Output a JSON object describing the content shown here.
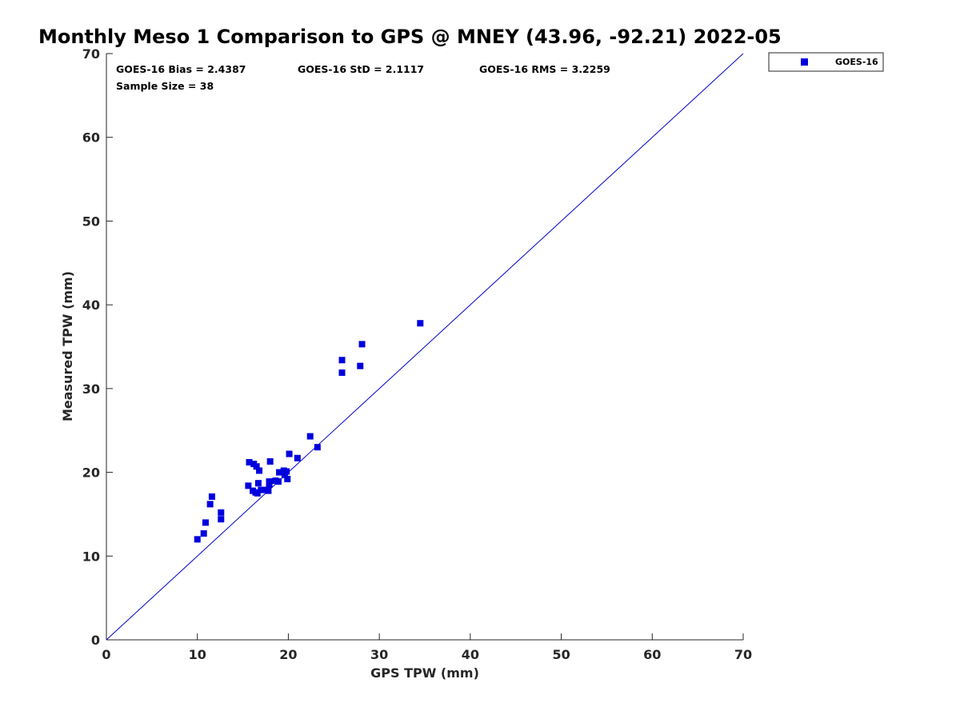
{
  "chart_data": {
    "type": "scatter",
    "title": "Monthly Meso 1 Comparison to GPS @ MNEY (43.96, -92.21) 2022-05",
    "xlabel": "GPS TPW (mm)",
    "ylabel": "Measured TPW (mm)",
    "xlim": [
      0,
      70
    ],
    "ylim": [
      0,
      70
    ],
    "x_ticks": [
      "0",
      "10",
      "20",
      "30",
      "40",
      "50",
      "60",
      "70"
    ],
    "y_ticks": [
      "0",
      "10",
      "20",
      "30",
      "40",
      "50",
      "60",
      "70"
    ],
    "grid": false,
    "legend_position": "top-right-outside",
    "reference_line": {
      "type": "one-to-one",
      "from": [
        0,
        0
      ],
      "to": [
        70,
        70
      ],
      "color": "#0000cc"
    },
    "stats": {
      "bias": "GOES-16 Bias = 2.4387",
      "std": "GOES-16 StD = 2.1117",
      "rms": "GOES-16 RMS = 3.2259",
      "sample_size": "Sample Size = 38"
    },
    "series": [
      {
        "name": "GOES-16",
        "color": "#0000dd",
        "marker": "square",
        "points": [
          [
            10.0,
            12.0
          ],
          [
            10.7,
            12.7
          ],
          [
            10.9,
            14.0
          ],
          [
            11.4,
            16.2
          ],
          [
            11.6,
            17.1
          ],
          [
            12.6,
            14.4
          ],
          [
            12.6,
            15.2
          ],
          [
            15.6,
            18.4
          ],
          [
            15.7,
            21.2
          ],
          [
            16.1,
            17.8
          ],
          [
            16.2,
            21.0
          ],
          [
            16.5,
            20.7
          ],
          [
            16.6,
            17.5
          ],
          [
            16.7,
            18.7
          ],
          [
            16.8,
            20.2
          ],
          [
            17.0,
            17.9
          ],
          [
            17.5,
            17.9
          ],
          [
            17.8,
            17.8
          ],
          [
            17.9,
            18.5
          ],
          [
            17.9,
            18.9
          ],
          [
            18.0,
            21.3
          ],
          [
            18.9,
            18.9
          ],
          [
            19.0,
            20.0
          ],
          [
            19.5,
            20.2
          ],
          [
            19.6,
            19.7
          ],
          [
            19.8,
            20.1
          ],
          [
            19.9,
            19.2
          ],
          [
            20.1,
            22.2
          ],
          [
            21.0,
            21.7
          ],
          [
            22.4,
            24.3
          ],
          [
            23.2,
            23.0
          ],
          [
            25.9,
            33.4
          ],
          [
            25.9,
            31.9
          ],
          [
            27.9,
            32.7
          ],
          [
            28.1,
            35.3
          ],
          [
            34.5,
            37.8
          ],
          [
            18.6,
            19.0
          ],
          [
            16.4,
            17.6
          ]
        ]
      }
    ]
  }
}
